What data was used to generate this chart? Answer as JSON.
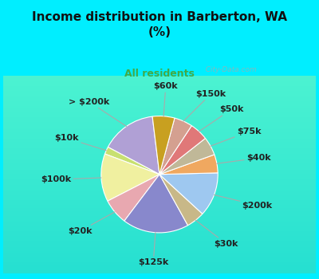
{
  "title": "Income distribution in Barberton, WA\n(%)",
  "subtitle": "All residents",
  "title_color": "#111111",
  "subtitle_color": "#44aa44",
  "background_outer": "#00eeff",
  "background_inner_top": "#e0f8f8",
  "background_inner_bottom": "#d0f0d8",
  "labels": [
    "> $200k",
    "$10k",
    "$100k",
    "$20k",
    "$125k",
    "$30k",
    "$200k",
    "$40k",
    "$75k",
    "$50k",
    "$150k",
    "$60k"
  ],
  "values": [
    15,
    2,
    13,
    7,
    18,
    5,
    12,
    5,
    5,
    5,
    5,
    6
  ],
  "colors": [
    "#b0a0d5",
    "#c8e070",
    "#f0f0a0",
    "#e8a8b0",
    "#8888cc",
    "#c8b888",
    "#9ec8f0",
    "#f0a860",
    "#c0b898",
    "#e07878",
    "#d4a090",
    "#c8a020"
  ],
  "startangle": 97,
  "label_fontsize": 8,
  "watermark": "  City-Data.com"
}
